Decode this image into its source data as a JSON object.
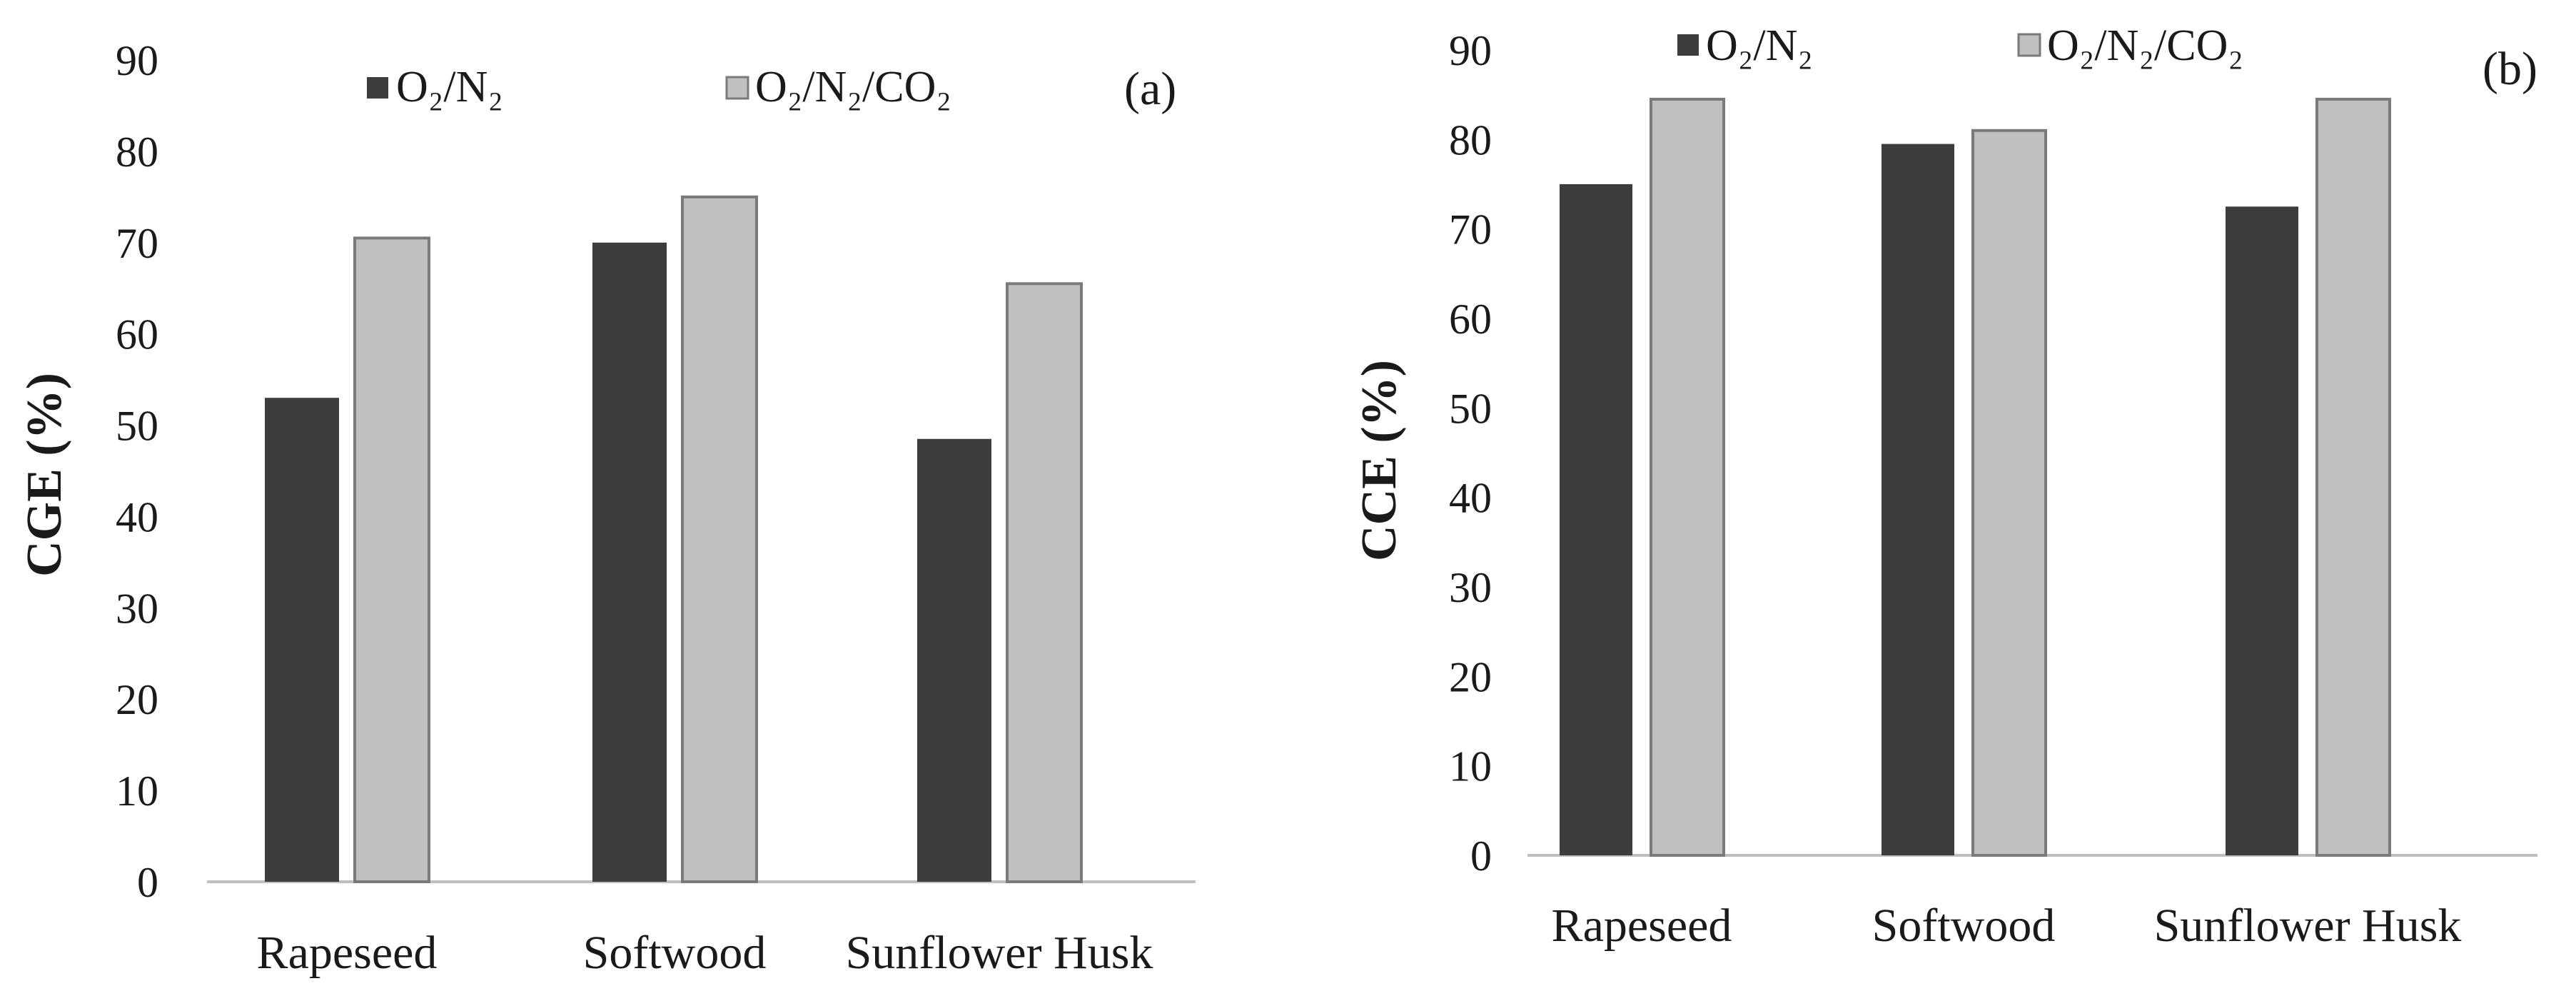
{
  "chart_data": [
    {
      "type": "bar",
      "panel_label": "(a)",
      "ylabel": "CGE (%)",
      "xlabel": "",
      "ylim": [
        0,
        90
      ],
      "yticks": [
        0,
        10,
        20,
        30,
        40,
        50,
        60,
        70,
        80,
        90
      ],
      "categories": [
        "Rapeseed",
        "Softwood",
        "Sunflower Husk"
      ],
      "legend": [
        "O₂/N₂",
        "O₂/N₂/CO₂"
      ],
      "series": [
        {
          "name": "O₂/N₂",
          "values": [
            53,
            70,
            48.5
          ],
          "color": "#3d3d3d"
        },
        {
          "name": "O₂/N₂/CO₂",
          "values": [
            70.5,
            75,
            65.5
          ],
          "color": "#c0c0c0"
        }
      ],
      "grid": false
    },
    {
      "type": "bar",
      "panel_label": "(b)",
      "ylabel": "CCE (%)",
      "xlabel": "",
      "ylim": [
        0,
        90
      ],
      "yticks": [
        0,
        10,
        20,
        30,
        40,
        50,
        60,
        70,
        80,
        90
      ],
      "categories": [
        "Rapeseed",
        "Softwood",
        "Sunflower Husk"
      ],
      "legend": [
        "O₂/N₂",
        "O₂/N₂/CO₂"
      ],
      "series": [
        {
          "name": "O₂/N₂",
          "values": [
            75,
            79.5,
            72.5
          ],
          "color": "#3d3d3d"
        },
        {
          "name": "O₂/N₂/CO₂",
          "values": [
            84.5,
            81,
            84.5
          ],
          "color": "#c0c0c0"
        }
      ],
      "grid": false
    }
  ]
}
